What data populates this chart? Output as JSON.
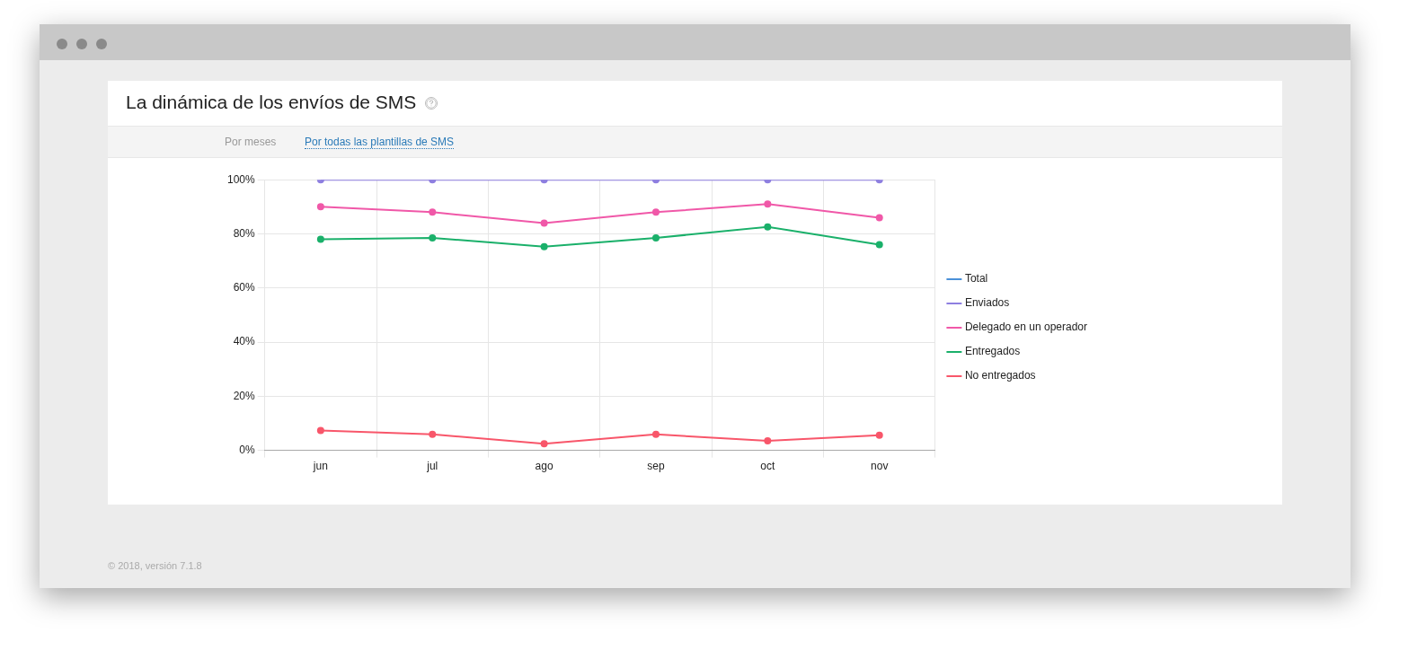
{
  "chart_data": {
    "type": "line",
    "title": "La dinámica de los envíos de SMS",
    "annotations": [
      "Por meses",
      "Por todas las plantillas de SMS",
      "© 2018, versión 7.1.8"
    ],
    "categories": [
      "jun",
      "jul",
      "ago",
      "sep",
      "oct",
      "nov"
    ],
    "series": [
      {
        "name": "Total",
        "color": "#4a90d9",
        "values": [
          null,
          null,
          null,
          null,
          null,
          null
        ]
      },
      {
        "name": "Enviados",
        "color": "#8e7fe0",
        "values": [
          100,
          100,
          100,
          100,
          100,
          100
        ]
      },
      {
        "name": "Delegado en un operador",
        "color": "#f058a8",
        "values": [
          90,
          88,
          84,
          88,
          91,
          86
        ]
      },
      {
        "name": "Entregados",
        "color": "#1ab06a",
        "values": [
          78,
          78.5,
          75.3,
          78.5,
          82.6,
          76
        ]
      },
      {
        "name": "No entregados",
        "color": "#f8566a",
        "values": [
          7.3,
          5.9,
          2.4,
          5.9,
          3.5,
          5.6
        ]
      }
    ],
    "ylim": [
      0,
      100
    ],
    "yticks": [
      {
        "value": 0,
        "label": "0%"
      },
      {
        "value": 20,
        "label": "20%"
      },
      {
        "value": 40,
        "label": "40%"
      },
      {
        "value": 60,
        "label": "60%"
      },
      {
        "value": 80,
        "label": "80%"
      },
      {
        "value": 100,
        "label": "100%"
      }
    ],
    "grid": true,
    "legend": "right",
    "marker": "circle",
    "line_style": "solid"
  }
}
